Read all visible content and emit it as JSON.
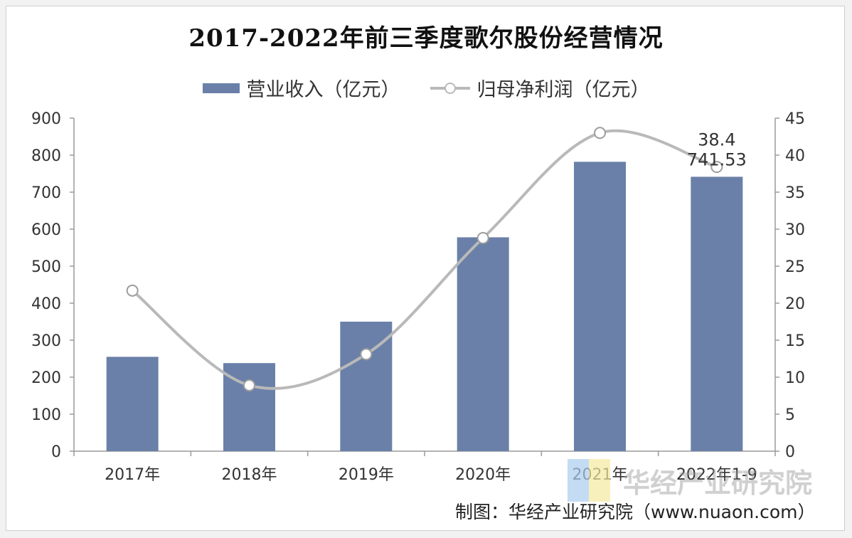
{
  "title": "2017-2022年前三季度歌尔股份经营情况",
  "legend": {
    "bar_label": "营业收入（亿元）",
    "line_label": "归母净利润（亿元）"
  },
  "footer": "制图：华经产业研究院（www.nuaon.com）",
  "watermark": {
    "text": "华经产业研究院"
  },
  "colors": {
    "bar": "#6a80a8",
    "line": "#b9b9b9",
    "axis": "#9a9a9a",
    "text": "#333333"
  },
  "chart_data": {
    "type": "bar",
    "categories": [
      "2017年",
      "2018年",
      "2019年",
      "2020年",
      "2021年",
      "2022年1-9"
    ],
    "series": [
      {
        "name": "营业收入（亿元）",
        "type": "bar",
        "axis": "left",
        "values": [
          255,
          238,
          350,
          578,
          782,
          741.53
        ]
      },
      {
        "name": "归母净利润（亿元）",
        "type": "line",
        "axis": "right",
        "values": [
          21.7,
          8.9,
          13.1,
          28.8,
          43.0,
          38.4
        ]
      }
    ],
    "y_left": {
      "min": 0,
      "max": 900,
      "step": 100,
      "ticks": [
        "0",
        "100",
        "200",
        "300",
        "400",
        "500",
        "600",
        "700",
        "800",
        "900"
      ]
    },
    "y_right": {
      "min": 0,
      "max": 45,
      "step": 5,
      "ticks": [
        "0",
        "5",
        "10",
        "15",
        "20",
        "25",
        "30",
        "35",
        "40",
        "45"
      ]
    },
    "data_labels": [
      {
        "series": 1,
        "index": 5,
        "text": "38.4"
      },
      {
        "series": 0,
        "index": 5,
        "text": "741.53"
      }
    ],
    "grid": false,
    "legend_position": "top"
  }
}
